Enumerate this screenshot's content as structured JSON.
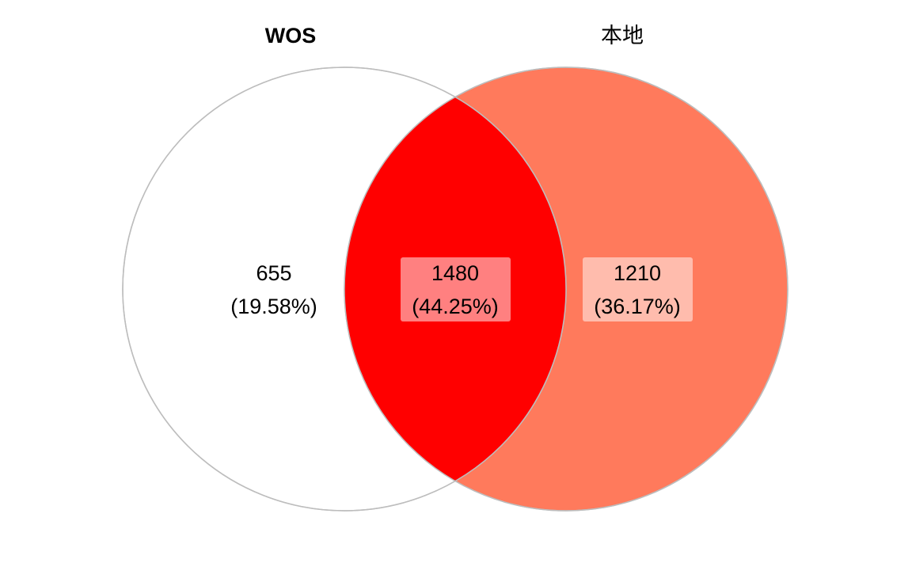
{
  "venn": {
    "sets": [
      {
        "name": "WOS",
        "color": "#ffffff",
        "border_color": "#bdbdbd"
      },
      {
        "name": "本地",
        "color": "#ff7a5c",
        "border_color": "#bdbdbd"
      }
    ],
    "intersection_color": "#ff0000",
    "regions": {
      "wos_only": {
        "count": "655",
        "percent": "(19.58%)",
        "label_bg": null
      },
      "intersection": {
        "count": "1480",
        "percent": "(44.25%)",
        "label_bg": "#ff8080"
      },
      "local_only": {
        "count": "1210",
        "percent": "(36.17%)",
        "label_bg": "#ffbcad"
      }
    }
  }
}
